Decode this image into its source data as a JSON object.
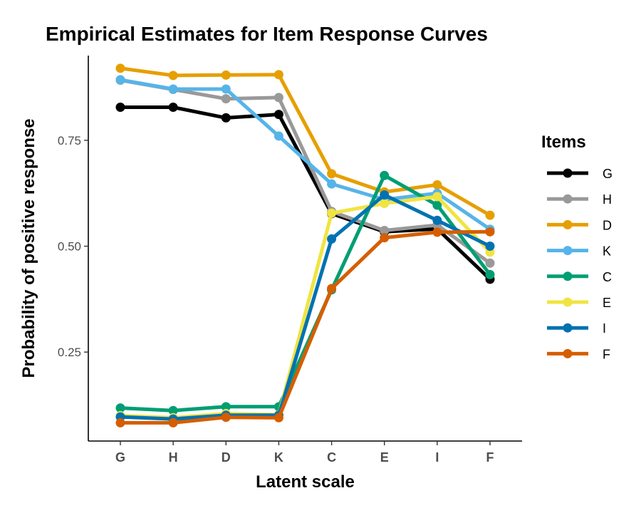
{
  "chart_data": {
    "type": "line",
    "title": "Empirical Estimates for Item Response Curves",
    "xlabel": "Latent scale",
    "ylabel": "Probability of positive response",
    "categories": [
      "G",
      "H",
      "D",
      "K",
      "C",
      "E",
      "I",
      "F"
    ],
    "ylim": [
      0.04,
      0.95
    ],
    "yticks": [
      0.25,
      0.5,
      0.75
    ],
    "ytick_labels": [
      "0.25",
      "0.50",
      "0.75"
    ],
    "grid": false,
    "legend": {
      "title": "Items",
      "position": "right"
    },
    "series": [
      {
        "name": "G",
        "color": "#000000",
        "values": [
          0.828,
          0.828,
          0.803,
          0.811,
          0.577,
          0.534,
          0.541,
          0.422
        ]
      },
      {
        "name": "H",
        "color": "#999999",
        "values": [
          0.892,
          0.87,
          0.848,
          0.851,
          0.582,
          0.537,
          0.55,
          0.46
        ]
      },
      {
        "name": "D",
        "color": "#E69F00",
        "values": [
          0.92,
          0.903,
          0.904,
          0.905,
          0.671,
          0.628,
          0.645,
          0.573
        ]
      },
      {
        "name": "K",
        "color": "#56B4E9",
        "values": [
          0.893,
          0.871,
          0.871,
          0.76,
          0.647,
          0.61,
          0.625,
          0.54
        ]
      },
      {
        "name": "C",
        "color": "#009E73",
        "values": [
          0.118,
          0.112,
          0.121,
          0.121,
          0.397,
          0.667,
          0.597,
          0.433
        ]
      },
      {
        "name": "E",
        "color": "#F0E442",
        "values": [
          0.1,
          0.095,
          0.105,
          0.102,
          0.578,
          0.601,
          0.617,
          0.486
        ]
      },
      {
        "name": "I",
        "color": "#0072B2",
        "values": [
          0.097,
          0.092,
          0.101,
          0.101,
          0.517,
          0.621,
          0.561,
          0.5
        ]
      },
      {
        "name": "F",
        "color": "#D55E00",
        "values": [
          0.083,
          0.083,
          0.096,
          0.095,
          0.4,
          0.52,
          0.533,
          0.534
        ]
      }
    ]
  }
}
